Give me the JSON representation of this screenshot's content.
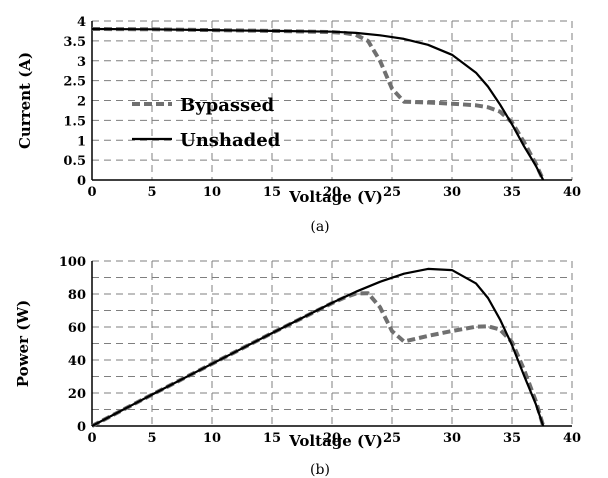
{
  "chart_data": [
    {
      "type": "line",
      "caption": "(a)",
      "xlabel": "Voltage (V)",
      "ylabel": "Current (A)",
      "xlim": [
        0,
        40
      ],
      "ylim": [
        0,
        4
      ],
      "xticks": [
        "0",
        "5",
        "10",
        "15",
        "20",
        "25",
        "30",
        "35",
        "40"
      ],
      "yticks": [
        "0",
        "0.5",
        "1",
        "1.5",
        "2",
        "2.5",
        "3",
        "3.5",
        "4"
      ],
      "grid": true,
      "legend_position": "center-left",
      "series": [
        {
          "name": "Bypassed",
          "style": "dashed",
          "color": "#707070",
          "x": [
            0,
            5,
            10,
            15,
            20,
            21,
            22,
            23,
            24,
            25,
            26,
            27,
            28,
            30,
            32,
            33,
            34,
            35,
            36,
            37,
            37.6
          ],
          "y": [
            3.8,
            3.79,
            3.77,
            3.75,
            3.72,
            3.7,
            3.65,
            3.5,
            3.0,
            2.3,
            1.97,
            1.96,
            1.95,
            1.92,
            1.88,
            1.83,
            1.72,
            1.45,
            0.95,
            0.4,
            0
          ]
        },
        {
          "name": "Unshaded",
          "style": "solid",
          "color": "#000000",
          "x": [
            0,
            5,
            10,
            15,
            20,
            22,
            24,
            26,
            28,
            30,
            32,
            33,
            34,
            35,
            36,
            37,
            37.6
          ],
          "y": [
            3.8,
            3.79,
            3.77,
            3.75,
            3.73,
            3.7,
            3.64,
            3.55,
            3.4,
            3.15,
            2.7,
            2.35,
            1.9,
            1.4,
            0.85,
            0.35,
            0
          ]
        }
      ]
    },
    {
      "type": "line",
      "caption": "(b)",
      "xlabel": "Voltage (V)",
      "ylabel": "Power (W)",
      "xlim": [
        0,
        40
      ],
      "ylim": [
        0,
        100
      ],
      "xticks": [
        "0",
        "5",
        "10",
        "15",
        "20",
        "25",
        "30",
        "35",
        "40"
      ],
      "yticks": [
        "0",
        "20",
        "40",
        "60",
        "80",
        "100"
      ],
      "grid": true,
      "series": [
        {
          "name": "Bypassed",
          "style": "dashed",
          "color": "#707070",
          "x": [
            0,
            5,
            10,
            15,
            20,
            21,
            22,
            23,
            24,
            25,
            26,
            27,
            28,
            30,
            32,
            33,
            34,
            35,
            36,
            37,
            37.6
          ],
          "y": [
            0,
            19,
            37.7,
            56.3,
            74.4,
            77.7,
            80.3,
            80.5,
            72,
            57.5,
            51.2,
            52.9,
            54.6,
            57.6,
            60.2,
            60.4,
            58.5,
            50.8,
            34.2,
            14.8,
            0
          ]
        },
        {
          "name": "Unshaded",
          "style": "solid",
          "color": "#000000",
          "x": [
            0,
            5,
            10,
            15,
            20,
            22,
            24,
            26,
            28,
            30,
            32,
            33,
            34,
            35,
            36,
            37,
            37.6
          ],
          "y": [
            0,
            19,
            37.7,
            56.3,
            74.6,
            81.4,
            87.4,
            92.3,
            95.2,
            94.5,
            86.4,
            77.6,
            64.6,
            49,
            30.6,
            13,
            0
          ]
        }
      ]
    }
  ]
}
